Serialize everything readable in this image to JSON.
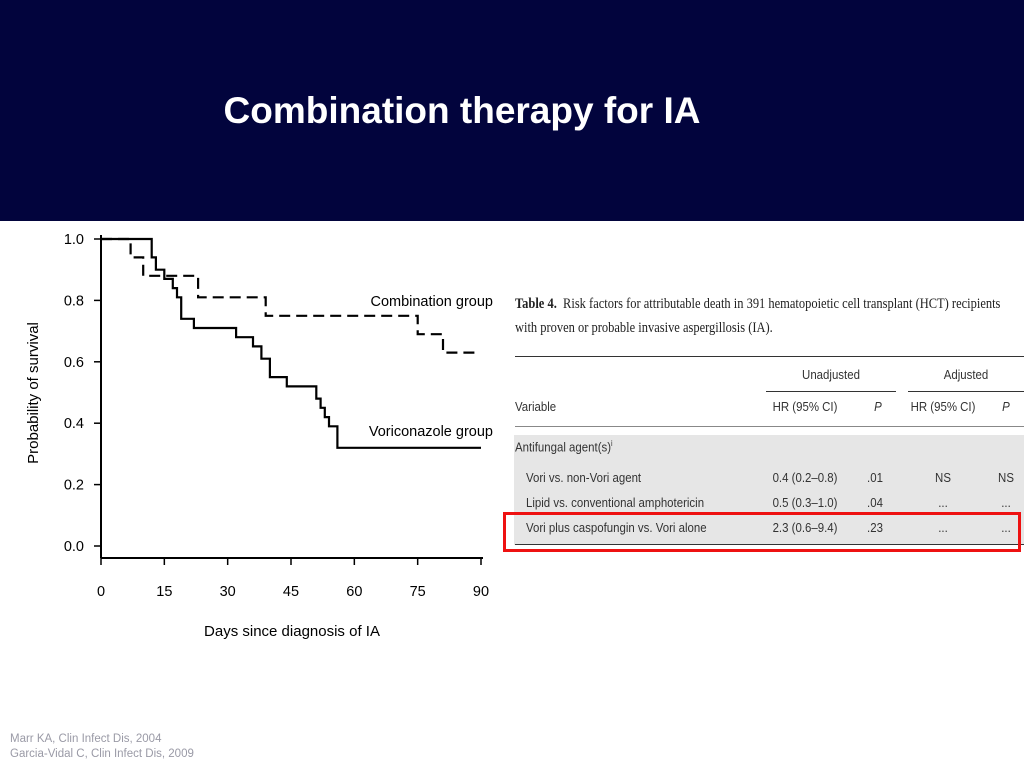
{
  "slide": {
    "title": "Combination therapy for IA",
    "references": [
      "Marr KA, Clin Infect Dis, 2004",
      "Garcia-Vidal C, Clin Infect Dis, 2009"
    ]
  },
  "colors": {
    "header_bg": "#02043d",
    "highlight": "#e11111"
  },
  "chart_data": {
    "type": "line",
    "xlabel": "Days since diagnosis of IA",
    "ylabel": "Probability of survival",
    "xlim": [
      0,
      90
    ],
    "ylim": [
      0,
      1
    ],
    "x_ticks": [
      0,
      15,
      30,
      45,
      60,
      75,
      90
    ],
    "y_ticks": [
      0.0,
      0.2,
      0.4,
      0.6,
      0.8,
      1.0
    ],
    "y_tick_labels": [
      "0.0",
      "0.2",
      "0.4",
      "0.6",
      "0.8",
      "1.0"
    ],
    "grid": false,
    "series": [
      {
        "name": "Combination group",
        "style": "dashed",
        "points": [
          [
            0,
            1.0
          ],
          [
            7,
            1.0
          ],
          [
            7,
            0.94
          ],
          [
            10,
            0.94
          ],
          [
            10,
            0.88
          ],
          [
            23,
            0.88
          ],
          [
            23,
            0.81
          ],
          [
            39,
            0.81
          ],
          [
            39,
            0.75
          ],
          [
            75,
            0.75
          ],
          [
            75,
            0.69
          ],
          [
            81,
            0.69
          ],
          [
            81,
            0.63
          ],
          [
            89,
            0.63
          ]
        ]
      },
      {
        "name": "Voriconazole group",
        "style": "solid",
        "points": [
          [
            0,
            1.0
          ],
          [
            12,
            1.0
          ],
          [
            12,
            0.94
          ],
          [
            13,
            0.94
          ],
          [
            13,
            0.9
          ],
          [
            15,
            0.9
          ],
          [
            15,
            0.87
          ],
          [
            17,
            0.87
          ],
          [
            17,
            0.84
          ],
          [
            18,
            0.84
          ],
          [
            18,
            0.81
          ],
          [
            19,
            0.81
          ],
          [
            19,
            0.74
          ],
          [
            22,
            0.74
          ],
          [
            22,
            0.71
          ],
          [
            32,
            0.71
          ],
          [
            32,
            0.68
          ],
          [
            36,
            0.68
          ],
          [
            36,
            0.65
          ],
          [
            38,
            0.65
          ],
          [
            38,
            0.61
          ],
          [
            40,
            0.61
          ],
          [
            40,
            0.55
          ],
          [
            44,
            0.55
          ],
          [
            44,
            0.52
          ],
          [
            51,
            0.52
          ],
          [
            51,
            0.48
          ],
          [
            52,
            0.48
          ],
          [
            52,
            0.45
          ],
          [
            53,
            0.45
          ],
          [
            53,
            0.42
          ],
          [
            54,
            0.42
          ],
          [
            54,
            0.39
          ],
          [
            56,
            0.39
          ],
          [
            56,
            0.32
          ],
          [
            90,
            0.32
          ]
        ]
      }
    ]
  },
  "table": {
    "caption_prefix": "Table 4.",
    "caption_text": "Risk factors for attributable death in 391 hematopoietic cell transplant (HCT) recipients",
    "caption_line2": "with proven or probable invasive aspergillosis (IA).",
    "group_headers": [
      "Unadjusted",
      "Adjusted"
    ],
    "columns": [
      "Variable",
      "HR (95% CI)",
      "P",
      "HR (95% CI)",
      "P"
    ],
    "section": "Antifungal agent(s)",
    "section_mark": "i",
    "rows": [
      [
        "Vori vs. non-Vori agent",
        "0.4 (0.2–0.8)",
        ".01",
        "NS",
        "NS"
      ],
      [
        "Lipid vs. conventional amphotericin",
        "0.5 (0.3–1.0)",
        ".04",
        "...",
        "..."
      ],
      [
        "Vori plus caspofungin vs. Vori alone",
        "2.3 (0.6–9.4)",
        ".23",
        "...",
        "..."
      ]
    ]
  }
}
